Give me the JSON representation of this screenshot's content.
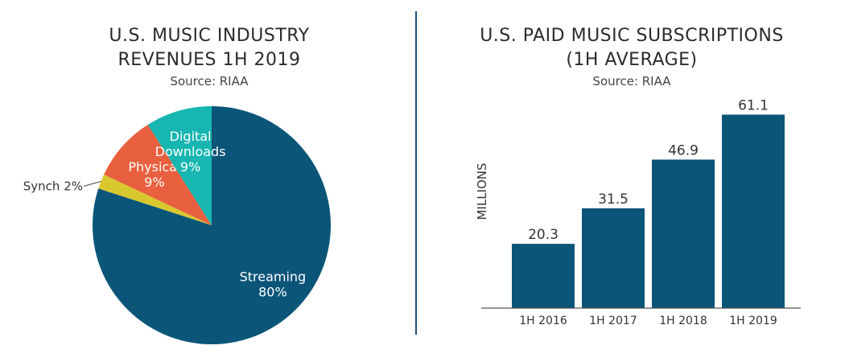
{
  "colors": {
    "divider": "#1e4f7a",
    "bar": "#0b5579",
    "axis": "#555555",
    "text": "#333333"
  },
  "chart_data": [
    {
      "type": "pie",
      "title_lines": [
        "U.S. MUSIC INDUSTRY",
        "REVENUES 1H 2019"
      ],
      "subtitle": "Source: RIAA",
      "slices": [
        {
          "name": "Streaming",
          "label_lines": [
            "Streaming",
            "80%"
          ],
          "value": 80,
          "color": "#0b5579",
          "label_color": "#ffffff"
        },
        {
          "name": "Synch",
          "label_lines": [
            "Synch 2%"
          ],
          "value": 2,
          "color": "#d9c72e",
          "label_color": "#333333",
          "external": true
        },
        {
          "name": "Physical",
          "label_lines": [
            "Physical",
            "9%"
          ],
          "value": 9,
          "color": "#e8603f",
          "label_color": "#ffffff"
        },
        {
          "name": "Digital Downloads",
          "label_lines": [
            "Digital",
            "Downloads",
            "9%"
          ],
          "value": 9,
          "color": "#17b6b0",
          "label_color": "#ffffff"
        }
      ]
    },
    {
      "type": "bar",
      "title_lines": [
        "U.S. PAID MUSIC SUBSCRIPTIONS",
        "(1H AVERAGE)"
      ],
      "subtitle": "Source: RIAA",
      "ylabel": "MILLIONS",
      "categories": [
        "1H 2016",
        "1H 2017",
        "1H 2018",
        "1H 2019"
      ],
      "values": [
        20.3,
        31.5,
        46.9,
        61.1
      ],
      "value_labels": [
        "20.3",
        "31.5",
        "46.9",
        "61.1"
      ],
      "ylim": [
        0,
        62
      ]
    }
  ]
}
